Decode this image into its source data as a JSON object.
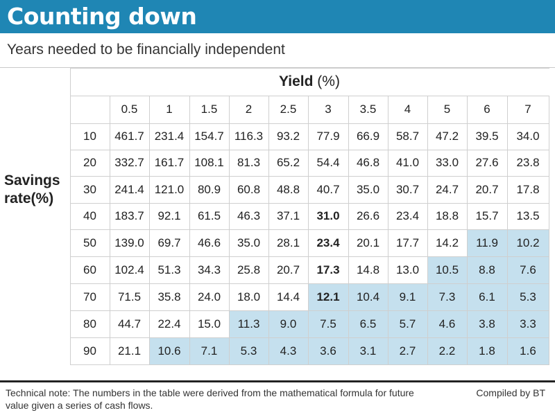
{
  "header": {
    "title": "Counting down",
    "subtitle": "Years needed to be financially independent"
  },
  "chart_data": {
    "type": "table",
    "column_header_prefix": "Yield",
    "column_header_unit": "(%)",
    "row_header_line1": "Savings",
    "row_header_line2": "rate(%)",
    "columns": [
      "0.5",
      "1",
      "1.5",
      "2",
      "2.5",
      "3",
      "3.5",
      "4",
      "5",
      "6",
      "7"
    ],
    "rows": [
      "10",
      "20",
      "30",
      "40",
      "50",
      "60",
      "70",
      "80",
      "90"
    ],
    "values": [
      [
        "461.7",
        "231.4",
        "154.7",
        "116.3",
        "93.2",
        "77.9",
        "66.9",
        "58.7",
        "47.2",
        "39.5",
        "34.0"
      ],
      [
        "332.7",
        "161.7",
        "108.1",
        "81.3",
        "65.2",
        "54.4",
        "46.8",
        "41.0",
        "33.0",
        "27.6",
        "23.8"
      ],
      [
        "241.4",
        "121.0",
        "80.9",
        "60.8",
        "48.8",
        "40.7",
        "35.0",
        "30.7",
        "24.7",
        "20.7",
        "17.8"
      ],
      [
        "183.7",
        "92.1",
        "61.5",
        "46.3",
        "37.1",
        "31.0",
        "26.6",
        "23.4",
        "18.8",
        "15.7",
        "13.5"
      ],
      [
        "139.0",
        "69.7",
        "46.6",
        "35.0",
        "28.1",
        "23.4",
        "20.1",
        "17.7",
        "14.2",
        "11.9",
        "10.2"
      ],
      [
        "102.4",
        "51.3",
        "34.3",
        "25.8",
        "20.7",
        "17.3",
        "14.8",
        "13.0",
        "10.5",
        "8.8",
        "7.6"
      ],
      [
        "71.5",
        "35.8",
        "24.0",
        "18.0",
        "14.4",
        "12.1",
        "10.4",
        "9.1",
        "7.3",
        "6.1",
        "5.3"
      ],
      [
        "44.7",
        "22.4",
        "15.0",
        "11.3",
        "9.0",
        "7.5",
        "6.5",
        "5.7",
        "4.6",
        "3.8",
        "3.3"
      ],
      [
        "21.1",
        "10.6",
        "7.1",
        "5.3",
        "4.3",
        "3.6",
        "3.1",
        "2.7",
        "2.2",
        "1.8",
        "1.6"
      ]
    ],
    "bold_cells": [
      [
        3,
        5
      ],
      [
        4,
        5
      ],
      [
        5,
        5
      ],
      [
        6,
        5
      ]
    ],
    "shaded_from_column": [
      11,
      11,
      11,
      11,
      9,
      8,
      5,
      3,
      1
    ],
    "shade_color": "#c5e0ee",
    "grid": true
  },
  "footer": {
    "note": "Technical note: The numbers in the table were derived from the mathematical formula for future value given a series of cash flows.",
    "credit": "Compiled by BT"
  },
  "colors": {
    "title_bar": "#1f86b4",
    "title_text": "#ffffff",
    "shade": "#c5e0ee"
  }
}
